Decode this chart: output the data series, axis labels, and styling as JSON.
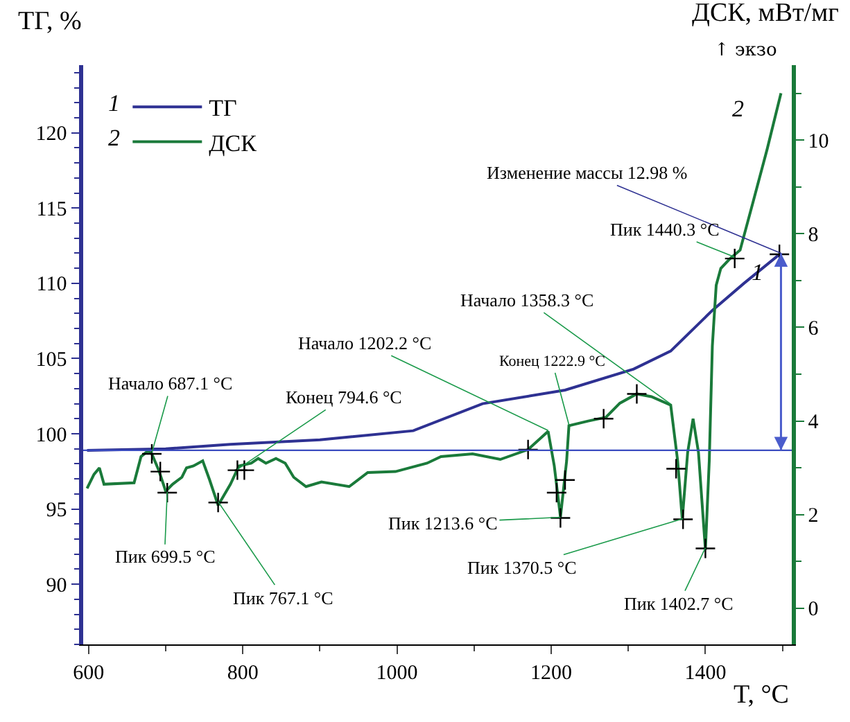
{
  "chart_data": {
    "type": "line",
    "xlabel": "T, °C",
    "ylabel": "ТГ, %",
    "y2label": "ДСК, мВт/мг",
    "xlim": [
      593,
      1512
    ],
    "xticks": [
      600,
      800,
      1000,
      1200,
      1400
    ],
    "ylim": [
      86.0,
      124.5
    ],
    "yticks": [
      90,
      95,
      100,
      105,
      110,
      115,
      120
    ],
    "y2lim": [
      -0.77,
      11.6
    ],
    "y2ticks": [
      0,
      2,
      4,
      6,
      8,
      10
    ],
    "legend": "top left",
    "marker": "none",
    "line_style": "solid",
    "series": [
      {
        "name": "ТГ",
        "color": "#2e3192",
        "x": [
          598,
          700,
          784,
          900,
          1021,
          1111,
          1218,
          1307,
          1355,
          1409,
          1450,
          1498
        ],
        "values": [
          98.9,
          99.0,
          99.3,
          99.6,
          100.2,
          102.0,
          102.9,
          104.3,
          105.5,
          108.2,
          110.0,
          112.0
        ]
      },
      {
        "name": "ДСК",
        "color": "#1a7a3a",
        "axis": "y2",
        "x": [
          598,
          607,
          614,
          620,
          659,
          668,
          677,
          682,
          691,
          700,
          709,
          721,
          727,
          736,
          748,
          757,
          768,
          784,
          795,
          811,
          820,
          830,
          843,
          855,
          866,
          882,
          902,
          938,
          962,
          998,
          1039,
          1057,
          1098,
          1134,
          1170,
          1196,
          1204,
          1212,
          1220,
          1223,
          1248,
          1271,
          1289,
          1311,
          1330,
          1355,
          1364,
          1370,
          1377,
          1384,
          1391,
          1400,
          1405,
          1409,
          1411,
          1414,
          1420,
          1432,
          1445,
          1462,
          1480,
          1498
        ],
        "values": [
          2.56,
          2.86,
          3.0,
          2.65,
          2.68,
          3.24,
          3.36,
          3.3,
          2.95,
          2.5,
          2.65,
          2.8,
          3.0,
          3.04,
          3.15,
          2.74,
          2.2,
          2.65,
          3.04,
          3.1,
          3.2,
          3.1,
          3.2,
          3.1,
          2.8,
          2.6,
          2.7,
          2.6,
          2.9,
          2.92,
          3.1,
          3.24,
          3.3,
          3.18,
          3.39,
          3.78,
          3.04,
          1.95,
          3.15,
          3.9,
          4.0,
          4.08,
          4.38,
          4.58,
          4.52,
          4.34,
          3.15,
          1.9,
          3.33,
          4.05,
          3.33,
          1.25,
          3.15,
          5.6,
          6.13,
          6.9,
          7.26,
          7.47,
          7.65,
          8.69,
          9.8,
          11.0
        ]
      },
      {
        "type": "scatter",
        "marker": "cross",
        "color": "#000000",
        "axis": "y2",
        "x": [
          682,
          693,
          702,
          768,
          793,
          802,
          1170,
          1207,
          1212,
          1218,
          1268,
          1311,
          1362,
          1371,
          1400,
          1438,
          1496
        ],
        "values": [
          3.3,
          2.92,
          2.47,
          2.26,
          2.95,
          2.95,
          3.39,
          2.47,
          1.93,
          2.74,
          4.05,
          4.58,
          2.98,
          1.9,
          1.28,
          7.47,
          7.56
        ]
      }
    ],
    "ref_lines": [
      {
        "axis": "y",
        "value": 98.9,
        "color": "#3b4cc0"
      }
    ],
    "annotations": [
      "↑ экзо",
      "1",
      "2",
      {
        "text": "Изменение массы 12.98 %",
        "x": 1498,
        "y": 112.0
      },
      {
        "text": "Пик 1440.3 °C",
        "x": 1438,
        "y": 111.74
      },
      {
        "text": "Начало 1358.3 °C",
        "x": 1355,
        "y": 101.97
      },
      {
        "text": "Начало 1202.2 °C",
        "x": 1196,
        "y": 100.22
      },
      {
        "text": "Конец 1222.9 °C",
        "x": 1223,
        "y": 100.6
      },
      {
        "text": "Начало 687.1 °C",
        "x": 682,
        "y": 98.73
      },
      {
        "text": "Конец 794.6 °C",
        "x": 793,
        "y": 97.63
      },
      {
        "text": "Пик 699.5 °C",
        "x": 702,
        "y": 96.14
      },
      {
        "text": "Пик 767.1 °C",
        "x": 768,
        "y": 95.48
      },
      {
        "text": "Пик 1213.6 °C",
        "x": 1212,
        "y": 94.45
      },
      {
        "text": "Пик 1370.5 °C",
        "x": 1371,
        "y": 94.36
      },
      {
        "text": "Пик 1402.7 °C",
        "x": 1400,
        "y": 92.42
      },
      {
        "text": "1",
        "x": 1498,
        "y": 112.0
      },
      {
        "text": "2",
        "x": 1498,
        "y": 122.75
      }
    ]
  }
}
